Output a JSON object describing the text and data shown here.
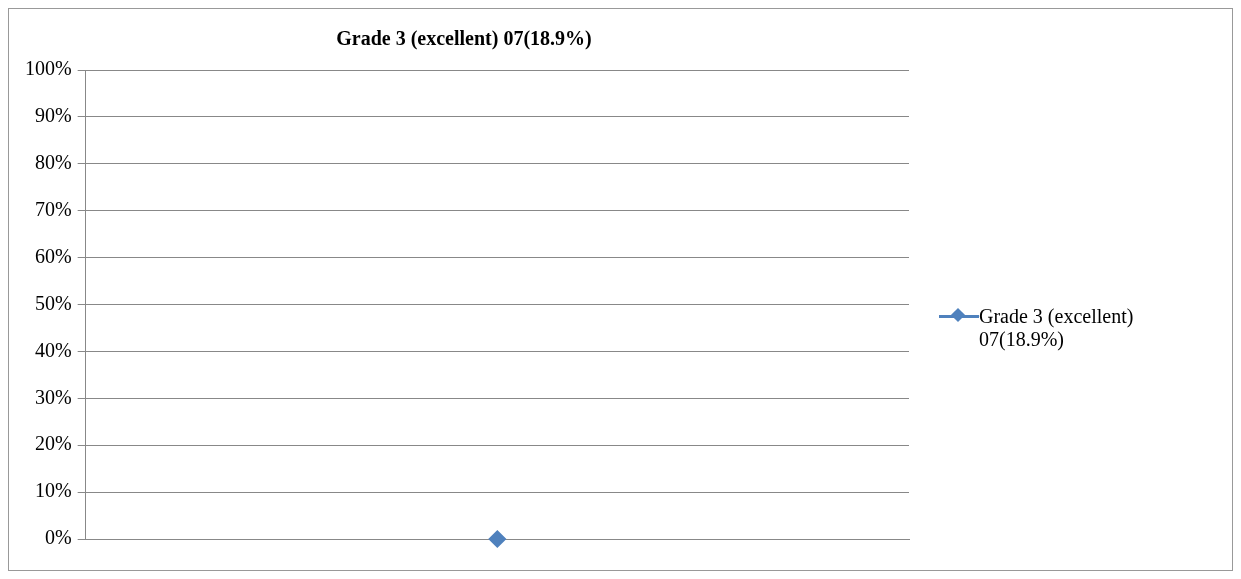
{
  "chart_data": {
    "type": "line",
    "title": "Grade 3 (excellent) 07(18.9%)",
    "categories": [
      null
    ],
    "series": [
      {
        "name": "Grade 3 (excellent) 07(18.9%)",
        "color": "#4f81bd",
        "values": [
          0
        ]
      }
    ],
    "ylim": [
      0,
      100
    ],
    "yticks": [
      {
        "value": 0,
        "label": "0%"
      },
      {
        "value": 10,
        "label": "10%"
      },
      {
        "value": 20,
        "label": "20%"
      },
      {
        "value": 30,
        "label": "30%"
      },
      {
        "value": 40,
        "label": "40%"
      },
      {
        "value": 50,
        "label": "50%"
      },
      {
        "value": 60,
        "label": "60%"
      },
      {
        "value": 70,
        "label": "70%"
      },
      {
        "value": 80,
        "label": "80%"
      },
      {
        "value": 90,
        "label": "90%"
      },
      {
        "value": 100,
        "label": "100%"
      }
    ],
    "grid": "y",
    "legend": "right",
    "marker": "diamond"
  }
}
